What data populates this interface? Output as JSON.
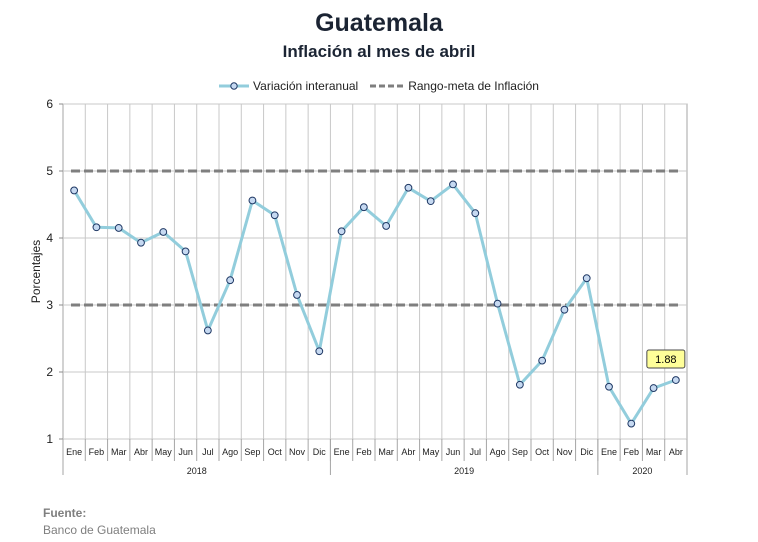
{
  "header": {
    "title": "Guatemala",
    "subtitle": "Inflación al mes de abril"
  },
  "legend": {
    "series_label": "Variación interanual",
    "target_label": "Rango-meta de Inflación"
  },
  "source": {
    "label": "Fuente:",
    "text": "Banco de Guatemala"
  },
  "colors": {
    "series": "#92cddc",
    "marker_fill": "#c6d9f1",
    "marker_stroke": "#1f3864",
    "target": "#7f7f7f",
    "grid": "#c8c8c8",
    "callout_fill": "#ffff99"
  },
  "chart_data": {
    "type": "line",
    "ylabel": "Porcentajes",
    "ylim": [
      1,
      6
    ],
    "yticks": [
      1,
      2,
      3,
      4,
      5,
      6
    ],
    "grid": true,
    "legend_position": "top-center",
    "categories": [
      "Ene",
      "Feb",
      "Mar",
      "Abr",
      "May",
      "Jun",
      "Jul",
      "Ago",
      "Sep",
      "Oct",
      "Nov",
      "Dic",
      "Ene",
      "Feb",
      "Mar",
      "Abr",
      "May",
      "Jun",
      "Jul",
      "Ago",
      "Sep",
      "Oct",
      "Nov",
      "Dic",
      "Ene",
      "Feb",
      "Mar",
      "Abr"
    ],
    "year_groups": [
      {
        "label": "2018",
        "count": 12
      },
      {
        "label": "2019",
        "count": 12
      },
      {
        "label": "2020",
        "count": 4
      }
    ],
    "series": [
      {
        "name": "Variación interanual",
        "values": [
          4.71,
          4.16,
          4.15,
          3.93,
          4.09,
          3.8,
          2.62,
          3.37,
          4.56,
          4.34,
          3.15,
          2.31,
          4.1,
          4.46,
          4.18,
          4.75,
          4.55,
          4.8,
          4.37,
          3.02,
          1.81,
          2.17,
          2.93,
          3.4,
          1.78,
          1.23,
          1.76,
          1.88
        ]
      }
    ],
    "target_band": [
      3,
      5
    ],
    "annotation": {
      "index": 27,
      "text": "1.88"
    }
  }
}
